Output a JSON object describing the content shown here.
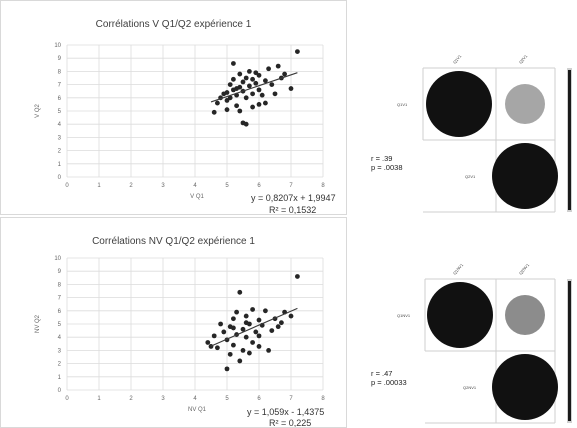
{
  "chart_data": [
    {
      "type": "scatter",
      "title": "Corrélations V Q1/Q2 expérience 1",
      "xlabel": "V Q1",
      "ylabel": "V Q2",
      "xlim": [
        0,
        8
      ],
      "ylim": [
        0,
        10
      ],
      "x_ticks": [
        "0",
        "1",
        "2",
        "3",
        "4",
        "5",
        "6",
        "7",
        "8"
      ],
      "y_ticks": [
        "0",
        "1",
        "2",
        "3",
        "4",
        "5",
        "6",
        "7",
        "8",
        "9",
        "10"
      ],
      "grid": true,
      "trendline": {
        "slope": 0.8207,
        "intercept": 1.9947,
        "equation": "y = 0,8207x + 1,9947",
        "r2_text": "R² = 0,1532"
      },
      "points": [
        [
          4.6,
          4.9
        ],
        [
          4.7,
          5.6
        ],
        [
          4.8,
          6.0
        ],
        [
          4.9,
          6.3
        ],
        [
          5.0,
          5.1
        ],
        [
          5.0,
          5.8
        ],
        [
          5.0,
          6.4
        ],
        [
          5.1,
          7.0
        ],
        [
          5.1,
          6.0
        ],
        [
          5.2,
          8.6
        ],
        [
          5.2,
          7.4
        ],
        [
          5.2,
          6.6
        ],
        [
          5.3,
          6.2
        ],
        [
          5.3,
          5.4
        ],
        [
          5.4,
          7.8
        ],
        [
          5.4,
          6.8
        ],
        [
          5.4,
          5.0
        ],
        [
          5.5,
          6.5
        ],
        [
          5.5,
          7.2
        ],
        [
          5.5,
          4.1
        ],
        [
          5.6,
          4.0
        ],
        [
          5.6,
          6.0
        ],
        [
          5.6,
          7.5
        ],
        [
          5.7,
          8.0
        ],
        [
          5.7,
          6.9
        ],
        [
          5.8,
          5.3
        ],
        [
          5.8,
          6.3
        ],
        [
          5.9,
          7.9
        ],
        [
          5.9,
          7.1
        ],
        [
          6.0,
          5.5
        ],
        [
          6.0,
          6.6
        ],
        [
          6.0,
          7.7
        ],
        [
          6.1,
          6.2
        ],
        [
          6.2,
          7.3
        ],
        [
          6.2,
          5.6
        ],
        [
          6.3,
          8.2
        ],
        [
          6.4,
          7.0
        ],
        [
          6.5,
          6.3
        ],
        [
          6.6,
          8.4
        ],
        [
          6.7,
          7.5
        ],
        [
          6.8,
          7.8
        ],
        [
          7.0,
          6.7
        ],
        [
          7.2,
          9.5
        ],
        [
          5.3,
          6.7
        ],
        [
          5.8,
          7.4
        ]
      ]
    },
    {
      "type": "scatter",
      "title": "Corrélations NV Q1/Q2 expérience 1",
      "xlabel": "NV Q1",
      "ylabel": "NV Q2",
      "xlim": [
        0,
        8
      ],
      "ylim": [
        0,
        10
      ],
      "x_ticks": [
        "0",
        "1",
        "2",
        "3",
        "4",
        "5",
        "6",
        "7",
        "8"
      ],
      "y_ticks": [
        "0",
        "1",
        "2",
        "3",
        "4",
        "5",
        "6",
        "7",
        "8",
        "9",
        "10"
      ],
      "grid": true,
      "trendline": {
        "slope": 1.059,
        "intercept": -1.4375,
        "equation": "y = 1,059x - 1,4375",
        "r2_text": "R² = 0,225"
      },
      "points": [
        [
          4.4,
          3.6
        ],
        [
          4.6,
          4.1
        ],
        [
          4.7,
          3.2
        ],
        [
          4.8,
          5.0
        ],
        [
          4.9,
          4.4
        ],
        [
          5.0,
          1.6
        ],
        [
          5.0,
          3.8
        ],
        [
          5.1,
          4.8
        ],
        [
          5.1,
          2.7
        ],
        [
          5.2,
          5.4
        ],
        [
          5.2,
          3.4
        ],
        [
          5.3,
          4.2
        ],
        [
          5.3,
          5.9
        ],
        [
          5.4,
          2.2
        ],
        [
          5.4,
          7.4
        ],
        [
          5.5,
          4.6
        ],
        [
          5.5,
          3.0
        ],
        [
          5.6,
          5.6
        ],
        [
          5.6,
          4.0
        ],
        [
          5.7,
          2.8
        ],
        [
          5.7,
          5.0
        ],
        [
          5.8,
          6.1
        ],
        [
          5.8,
          3.6
        ],
        [
          5.9,
          4.4
        ],
        [
          6.0,
          5.3
        ],
        [
          6.0,
          3.3
        ],
        [
          6.1,
          4.9
        ],
        [
          6.2,
          6.0
        ],
        [
          6.3,
          3.0
        ],
        [
          6.4,
          4.5
        ],
        [
          6.5,
          5.4
        ],
        [
          6.6,
          4.8
        ],
        [
          6.7,
          5.1
        ],
        [
          6.8,
          5.9
        ],
        [
          7.0,
          5.6
        ],
        [
          7.2,
          8.6
        ],
        [
          5.2,
          4.7
        ],
        [
          5.6,
          5.1
        ],
        [
          4.5,
          3.3
        ],
        [
          6.0,
          4.1
        ]
      ]
    }
  ],
  "correlograms": [
    {
      "row_label": "Q1V1",
      "col_labels": [
        "Q1V1",
        "Q2V1"
      ],
      "row2_label": "Q2V1",
      "stats": [
        "r = .39",
        "p = .0038"
      ],
      "colors": {
        "strong": "#111111",
        "weak": "#a6a6a6"
      }
    },
    {
      "row_label": "Q1NV1",
      "col_labels": [
        "Q1NV1",
        "Q2NV1"
      ],
      "row2_label": "Q2NV1",
      "stats": [
        "r = .47",
        "p = .00033"
      ],
      "colors": {
        "strong": "#111111",
        "weak": "#8c8c8c"
      }
    }
  ]
}
